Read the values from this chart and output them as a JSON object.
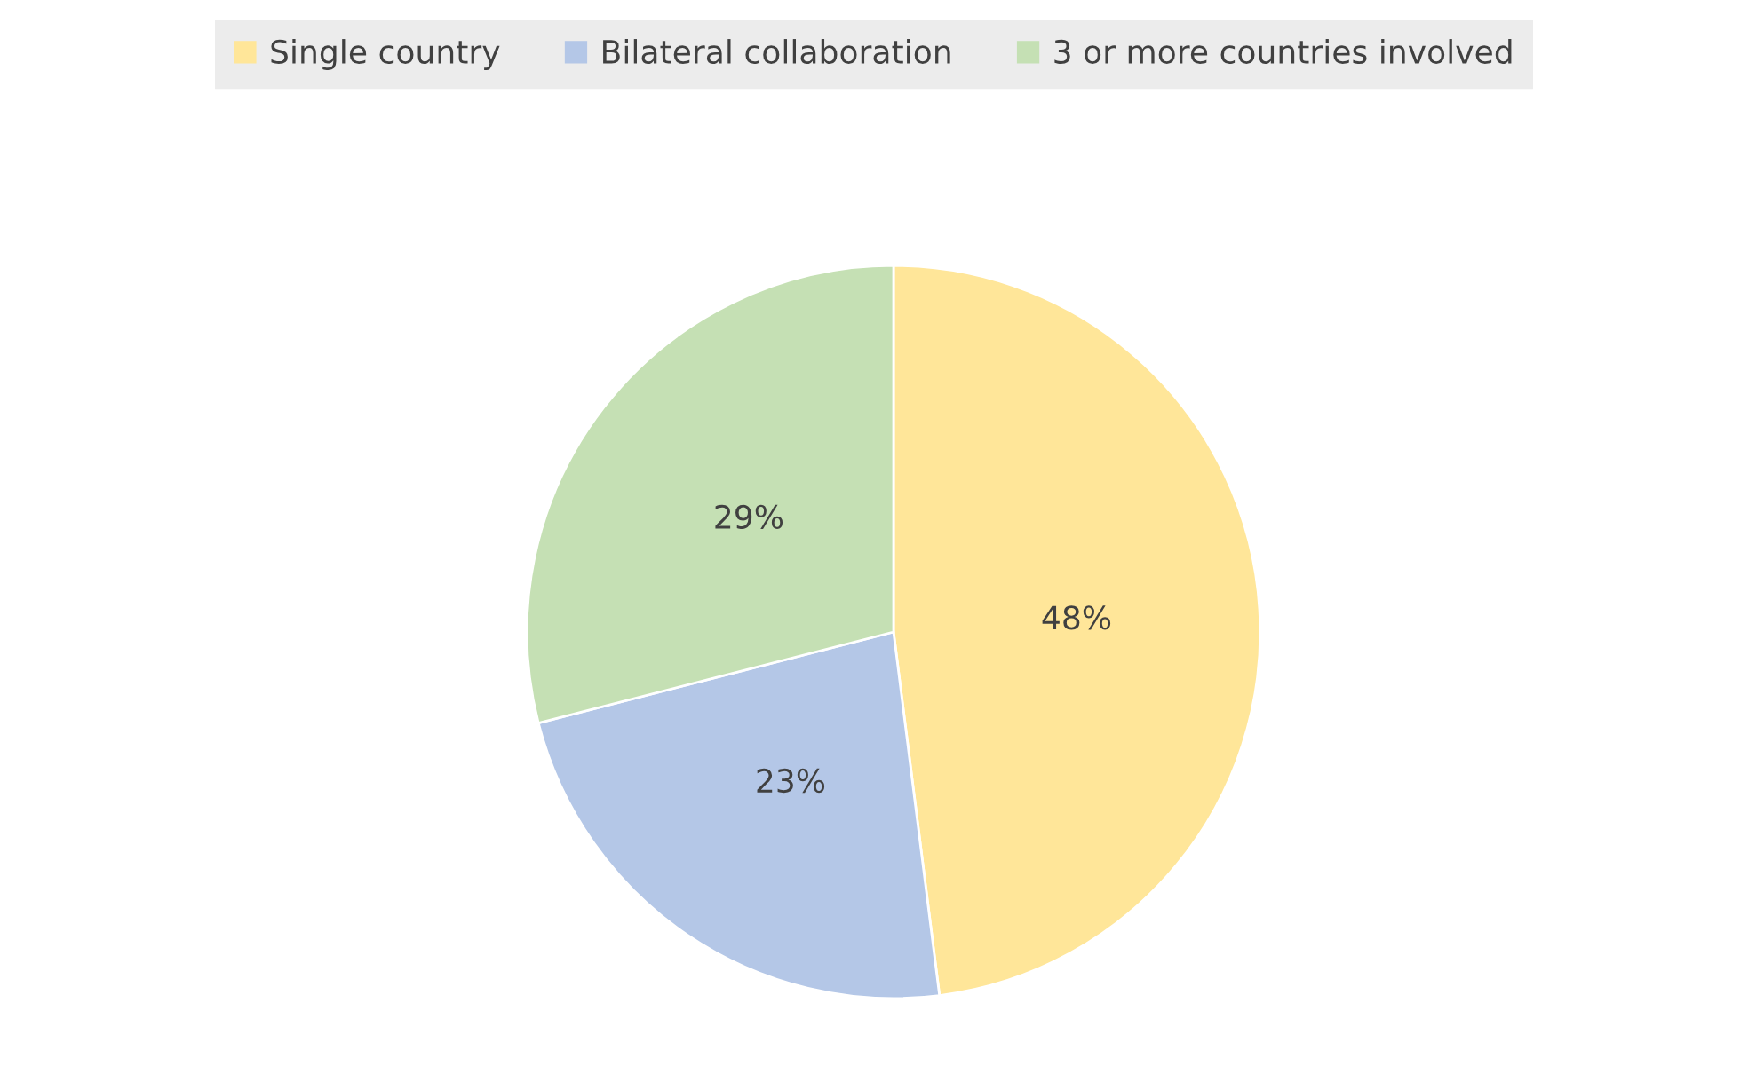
{
  "chart_data": {
    "type": "pie",
    "categories": [
      "Single country",
      "Bilateral collaboration",
      "3 or more countries involved"
    ],
    "values": [
      48,
      23,
      29
    ],
    "colors": [
      "#ffe699",
      "#b4c7e7",
      "#c5e0b4"
    ],
    "value_labels": [
      "48%",
      "23%",
      "29%"
    ],
    "legend": "top"
  }
}
